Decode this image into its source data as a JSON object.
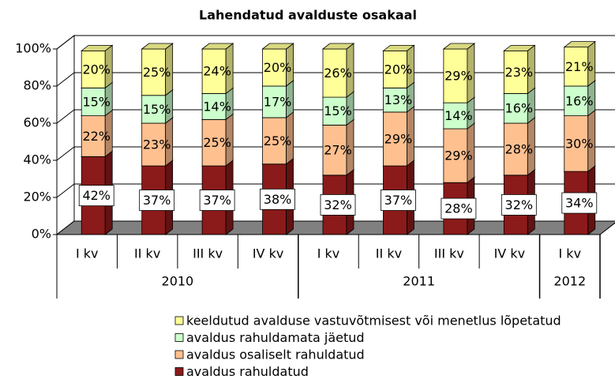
{
  "chart_data": {
    "type": "bar3d_stacked",
    "title": "Lahendatud avalduste osakaal",
    "categories": [
      "I kv",
      "II kv",
      "III kv",
      "IV kv",
      "I kv",
      "II kv",
      "III kv",
      "IV kv",
      "I kv"
    ],
    "years": [
      "2010",
      "2010",
      "2010",
      "2010",
      "2011",
      "2011",
      "2011",
      "2011",
      "2012"
    ],
    "series": [
      {
        "name": "avaldus rahuldatud",
        "color": "#8b1a1a",
        "values": [
          42,
          37,
          37,
          38,
          32,
          37,
          28,
          32,
          34
        ],
        "value_labels": [
          "42%",
          "37%",
          "37%",
          "38%",
          "32%",
          "37%",
          "28%",
          "32%",
          "34%"
        ]
      },
      {
        "name": "avaldus osaliselt rahuldatud",
        "color": "#ffc090",
        "values": [
          22,
          23,
          25,
          25,
          27,
          29,
          29,
          28,
          30
        ],
        "value_labels": [
          "22%",
          "23%",
          "25%",
          "25%",
          "27%",
          "29%",
          "29%",
          "28%",
          "30%"
        ]
      },
      {
        "name": "avaldus rahuldamata jäetud",
        "color": "#ccffcc",
        "values": [
          15,
          15,
          14,
          17,
          15,
          13,
          14,
          16,
          16
        ],
        "value_labels": [
          "15%",
          "15%",
          "14%",
          "17%",
          "15%",
          "13%",
          "14%",
          "16%",
          "16%"
        ]
      },
      {
        "name": "keeldutud avalduse vastuvõtmisest või menetlus lõpetatud",
        "color": "#ffff99",
        "values": [
          20,
          25,
          24,
          20,
          26,
          20,
          29,
          23,
          21
        ],
        "value_labels": [
          "20%",
          "25%",
          "24%",
          "20%",
          "26%",
          "20%",
          "29%",
          "23%",
          "21%"
        ]
      }
    ],
    "ylim": [
      0,
      100
    ],
    "yticks": [
      {
        "value": 0,
        "label": "0%"
      },
      {
        "value": 20,
        "label": "20%"
      },
      {
        "value": 40,
        "label": "40%"
      },
      {
        "value": 60,
        "label": "60%"
      },
      {
        "value": 80,
        "label": "80%"
      },
      {
        "value": 100,
        "label": "100%"
      }
    ],
    "grid": true
  }
}
